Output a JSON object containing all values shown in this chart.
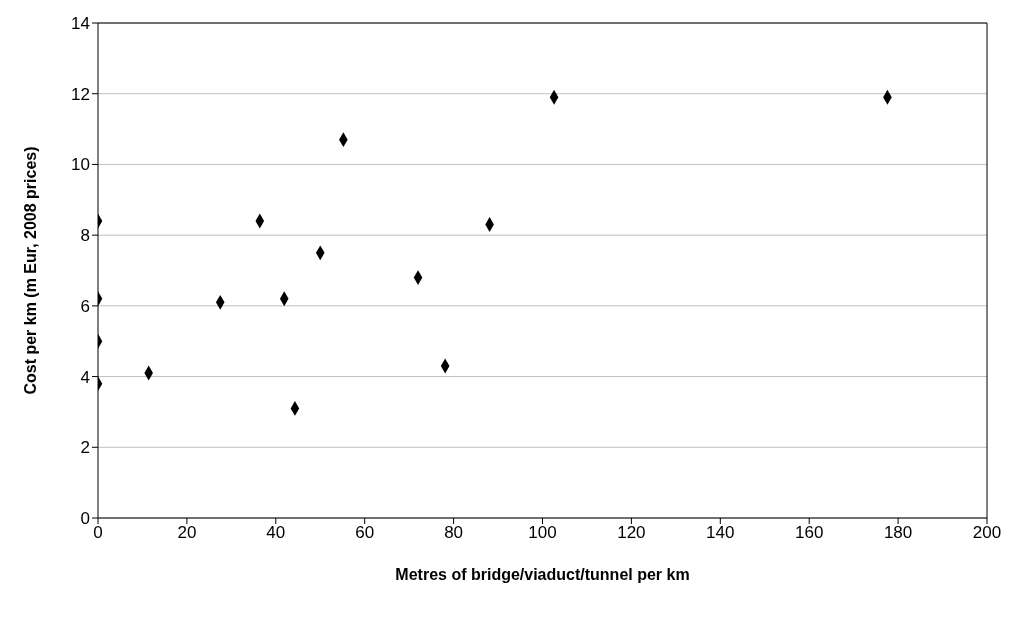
{
  "chart_data": {
    "type": "scatter",
    "xlabel": "Metres of bridge/viaduct/tunnel per km",
    "ylabel": "Cost per km (m Eur, 2008 prices)",
    "x": [
      0,
      0,
      0,
      0,
      11.4,
      27.5,
      36.4,
      41.9,
      44.3,
      50.0,
      55.2,
      72.0,
      78.1,
      88.1,
      102.6,
      177.6
    ],
    "values": [
      8.4,
      6.2,
      5.0,
      3.8,
      4.1,
      6.1,
      8.4,
      6.2,
      3.1,
      7.5,
      10.7,
      6.8,
      4.3,
      8.3,
      11.9,
      11.9
    ],
    "color": "#000000",
    "marker": "diamond",
    "xlim": [
      0,
      200
    ],
    "xticks": [
      0,
      20,
      40,
      60,
      80,
      100,
      120,
      140,
      160,
      180,
      200
    ],
    "ylim": [
      0,
      14
    ],
    "yticks": [
      0,
      2,
      4,
      6,
      8,
      10,
      12,
      14
    ],
    "grid": "y",
    "legend": false
  }
}
